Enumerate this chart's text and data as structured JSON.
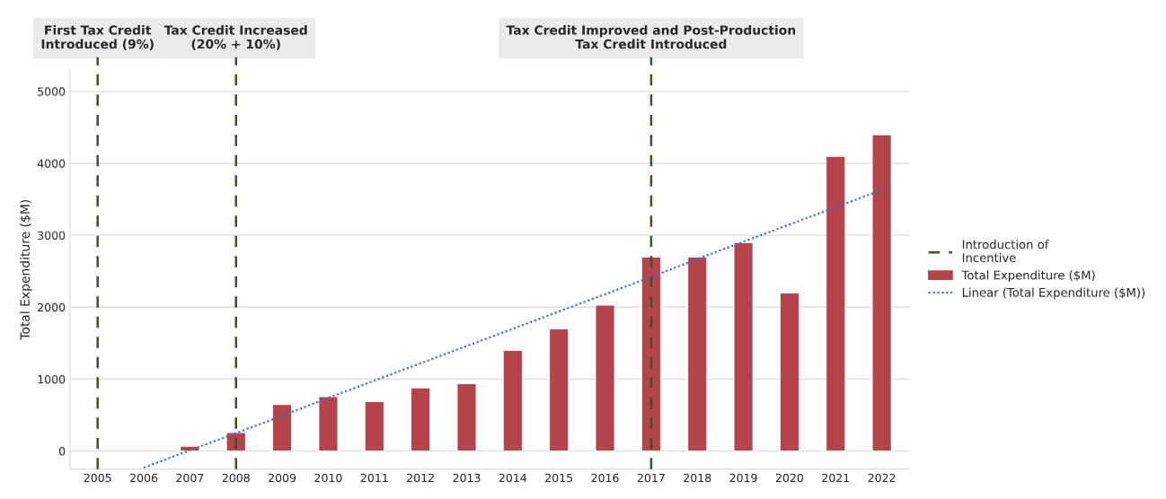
{
  "chart_data": {
    "type": "bar",
    "ylabel": "Total Expenditure ($M)",
    "categories": [
      "2005",
      "2006",
      "2007",
      "2008",
      "2009",
      "2010",
      "2011",
      "2012",
      "2013",
      "2014",
      "2015",
      "2016",
      "2017",
      "2018",
      "2019",
      "2020",
      "2021",
      "2022"
    ],
    "series": [
      {
        "name": "Total Expenditure ($M)",
        "color": "#b5434b",
        "values": [
          null,
          null,
          70,
          260,
          650,
          760,
          690,
          880,
          940,
          1400,
          1700,
          2030,
          2700,
          2700,
          2900,
          2200,
          4100,
          4400
        ]
      },
      {
        "name": "Linear (Total Expenditure ($M))",
        "type": "line",
        "color": "#4472c4",
        "line_style": "dotted",
        "values": [
          null,
          -230,
          10,
          250,
          490,
          740,
          980,
          1220,
          1460,
          1700,
          1940,
          2180,
          2420,
          2670,
          2910,
          3150,
          3390,
          3630
        ]
      }
    ],
    "ylim": [
      -250,
      5300
    ],
    "yticks": [
      0,
      1000,
      2000,
      3000,
      4000,
      5000
    ],
    "grid": "y",
    "legend": "right",
    "ref_lines": [
      {
        "axis": "x",
        "value": "2005",
        "label": "First Tax Credit\nIntroduced (9%)",
        "color": "#375623",
        "line_style": "dashed"
      },
      {
        "axis": "x",
        "value": "2008",
        "label": "Tax Credit Increased\n(20% + 10%)",
        "color": "#375623",
        "line_style": "dashed"
      },
      {
        "axis": "x",
        "value": "2017",
        "label": "Tax Credit Improved and Post-Production\nTax Credit Introduced",
        "color": "#375623",
        "line_style": "dashed"
      }
    ],
    "annotations": [
      "Introduction of\nIncentive"
    ]
  }
}
